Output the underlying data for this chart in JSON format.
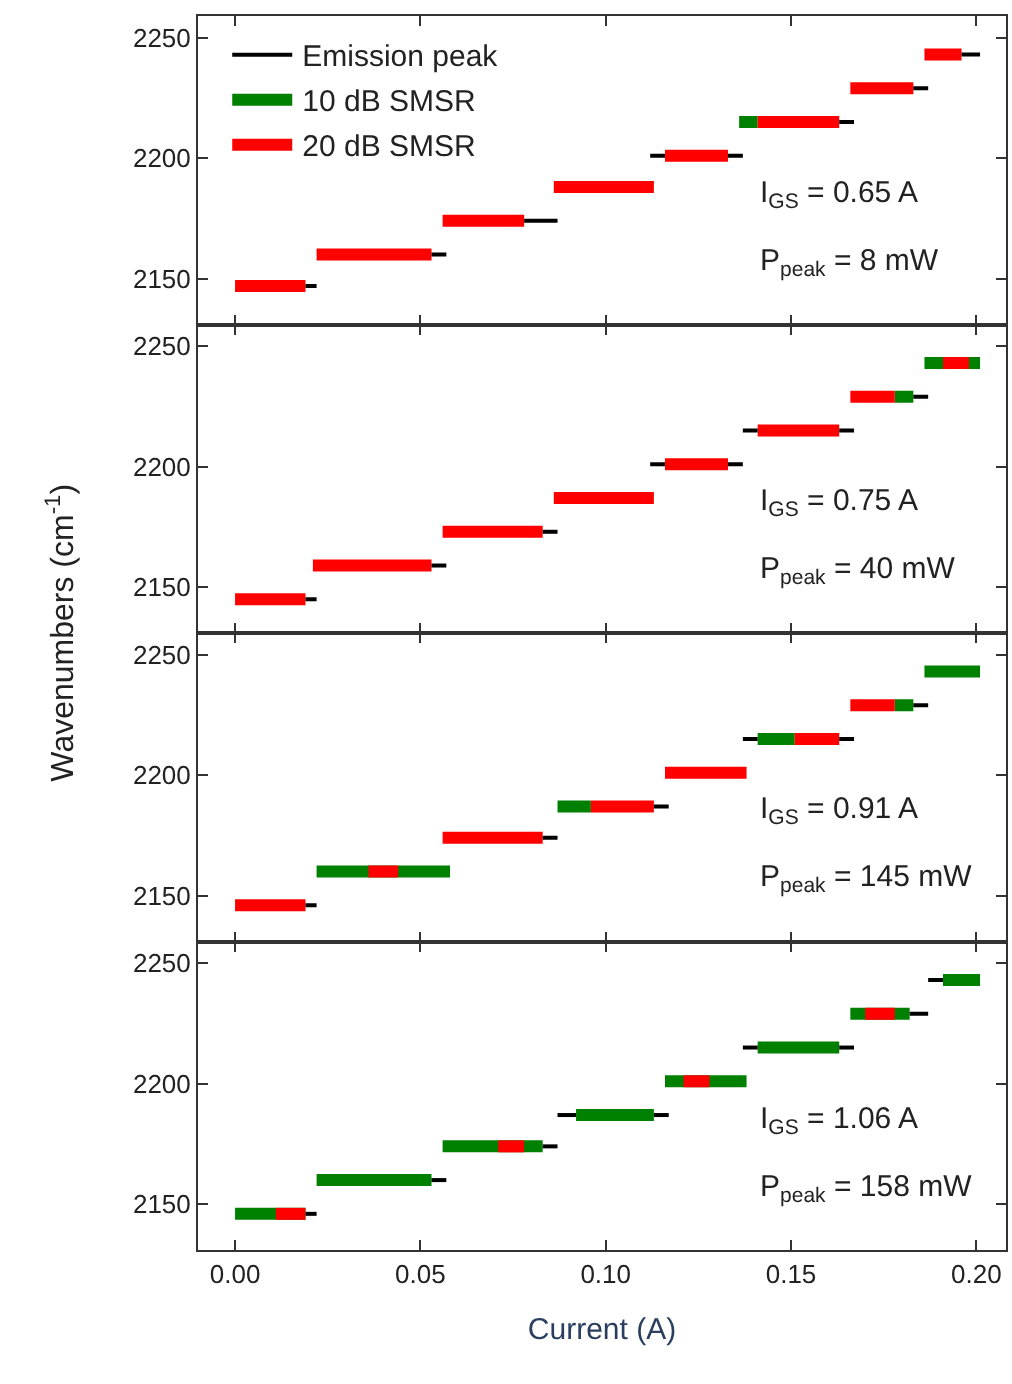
{
  "chart_data": [
    {
      "type": "line",
      "legend": "top left",
      "tick_labels": "y",
      "xlim": [
        -0.01,
        0.208
      ],
      "xticks": [
        {
          "value": 0,
          "label": null
        },
        {
          "value": 0.05,
          "label": null
        },
        {
          "value": 0.1,
          "label": null
        },
        {
          "value": 0.15,
          "label": null
        },
        {
          "value": 0.2,
          "label": null
        }
      ],
      "ylim": [
        2131,
        2259
      ],
      "yticks": [
        2150,
        2200,
        2250
      ],
      "annotations": [
        "I$_{GS}$ = 0.65 A",
        "P$_{peak}$ = 8 mW"
      ],
      "series": [
        {
          "name": "Emission peak",
          "color": "#000000",
          "x": [
            0.019,
            0.022,
            null,
            0.053,
            0.057,
            null,
            0.078,
            0.087,
            null,
            0.112,
            0.116,
            null,
            0.133,
            0.137,
            null,
            0.163,
            0.167,
            null,
            0.183,
            0.187,
            null,
            0.196,
            0.201
          ],
          "values": [
            2147,
            2147,
            null,
            2160,
            2160,
            null,
            2174,
            2174,
            null,
            2201,
            2201,
            null,
            2201,
            2201,
            null,
            2215,
            2215,
            null,
            2229,
            2229,
            null,
            2243,
            2243
          ]
        },
        {
          "name": "10 dB SMSR",
          "color": "#008000",
          "x": [
            0.136,
            0.141
          ],
          "values": [
            2215,
            2215
          ]
        },
        {
          "name": "20 dB SMSR",
          "color": "#ff0000",
          "x": [
            0,
            0.019,
            null,
            0.022,
            0.053,
            null,
            0.056,
            0.078,
            null,
            0.086,
            0.113,
            null,
            0.116,
            0.133,
            null,
            0.141,
            0.163,
            null,
            0.166,
            0.183,
            null,
            0.186,
            0.196
          ],
          "values": [
            2147,
            2147,
            null,
            2160,
            2160,
            null,
            2174,
            2174,
            null,
            2188,
            2188,
            null,
            2201,
            2201,
            null,
            2215,
            2215,
            null,
            2229,
            2229,
            null,
            2243,
            2243
          ]
        }
      ]
    },
    {
      "type": "line",
      "tick_labels": "y",
      "xlim": [
        -0.01,
        0.208
      ],
      "xticks": [
        {
          "value": 0,
          "label": null
        },
        {
          "value": 0.05,
          "label": null
        },
        {
          "value": 0.1,
          "label": null
        },
        {
          "value": 0.15,
          "label": null
        },
        {
          "value": 0.2,
          "label": null
        }
      ],
      "ylim": [
        2131,
        2259
      ],
      "yticks": [
        2150,
        2200,
        2250
      ],
      "ylabel": "Wavenumbers (cm$^{-1}$)",
      "annotations": [
        "I$_{GS}$ = 0.75 A",
        "P$_{peak}$ = 40 mW"
      ],
      "series": [
        {
          "color": "#000000",
          "x": [
            0.019,
            0.022,
            null,
            0.053,
            0.057,
            null,
            0.083,
            0.087,
            null,
            0.112,
            0.116,
            null,
            0.133,
            0.137,
            null,
            0.137,
            0.141,
            null,
            0.163,
            0.167,
            null,
            0.183,
            0.187
          ],
          "values": [
            2145,
            2145,
            null,
            2159,
            2159,
            null,
            2173,
            2173,
            null,
            2201,
            2201,
            null,
            2201,
            2201,
            null,
            2215,
            2215,
            null,
            2215,
            2215,
            null,
            2229,
            2229
          ]
        },
        {
          "color": "#008000",
          "x": [
            0.178,
            0.183,
            null,
            0.186,
            0.201
          ],
          "values": [
            2229,
            2229,
            null,
            2243,
            2243
          ]
        },
        {
          "color": "#ff0000",
          "x": [
            0,
            0.019,
            null,
            0.021,
            0.053,
            null,
            0.056,
            0.083,
            null,
            0.086,
            0.113,
            null,
            0.116,
            0.133,
            null,
            0.141,
            0.163,
            null,
            0.166,
            0.178,
            null,
            0.191,
            0.198
          ],
          "values": [
            2145,
            2145,
            null,
            2159,
            2159,
            null,
            2173,
            2173,
            null,
            2187,
            2187,
            null,
            2201,
            2201,
            null,
            2215,
            2215,
            null,
            2229,
            2229,
            null,
            2243,
            2243
          ]
        }
      ]
    },
    {
      "type": "line",
      "tick_labels": "y",
      "xlim": [
        -0.01,
        0.208
      ],
      "xticks": [
        {
          "value": 0,
          "label": null
        },
        {
          "value": 0.05,
          "label": null
        },
        {
          "value": 0.1,
          "label": null
        },
        {
          "value": 0.15,
          "label": null
        },
        {
          "value": 0.2,
          "label": null
        }
      ],
      "ylim": [
        2131,
        2259
      ],
      "yticks": [
        2150,
        2200,
        2250
      ],
      "annotations": [
        "I$_{GS}$ = 0.91 A",
        "P$_{peak}$ = 145 mW"
      ],
      "series": [
        {
          "color": "#000000",
          "x": [
            0.019,
            0.022,
            null,
            0.083,
            0.087,
            null,
            0.113,
            0.117,
            null,
            0.137,
            0.141,
            null,
            0.163,
            0.167,
            null,
            0.183,
            0.187
          ],
          "values": [
            2146,
            2146,
            null,
            2174,
            2174,
            null,
            2187,
            2187,
            null,
            2215,
            2215,
            null,
            2215,
            2215,
            null,
            2229,
            2229
          ]
        },
        {
          "color": "#008000",
          "x": [
            0.022,
            0.058,
            null,
            0.087,
            0.096,
            null,
            0.141,
            0.151,
            null,
            0.178,
            0.183,
            null,
            0.186,
            0.201
          ],
          "values": [
            2160,
            2160,
            null,
            2187,
            2187,
            null,
            2215,
            2215,
            null,
            2229,
            2229,
            null,
            2243,
            2243
          ]
        },
        {
          "color": "#ff0000",
          "x": [
            0,
            0.019,
            null,
            0.036,
            0.044,
            null,
            0.056,
            0.083,
            null,
            0.096,
            0.113,
            null,
            0.116,
            0.138,
            null,
            0.151,
            0.163,
            null,
            0.166,
            0.178
          ],
          "values": [
            2146,
            2146,
            null,
            2160,
            2160,
            null,
            2174,
            2174,
            null,
            2187,
            2187,
            null,
            2201,
            2201,
            null,
            2215,
            2215,
            null,
            2229,
            2229
          ]
        }
      ]
    },
    {
      "type": "line",
      "xlabel": "Current (A)",
      "xlim": [
        -0.01,
        0.208
      ],
      "xticks": [
        {
          "value": 0,
          "label": "0.00"
        },
        {
          "value": 0.05,
          "label": "0.05"
        },
        {
          "value": 0.1,
          "label": "0.10"
        },
        {
          "value": 0.15,
          "label": "0.15"
        },
        {
          "value": 0.2,
          "label": "0.20"
        }
      ],
      "ylim": [
        2131,
        2259
      ],
      "yticks": [
        2150,
        2200,
        2250
      ],
      "annotations": [
        "I$_{GS}$ = 1.06 A",
        "P$_{peak}$ = 158 mW"
      ],
      "series": [
        {
          "color": "#000000",
          "x": [
            0.019,
            0.022,
            null,
            0.053,
            0.057,
            null,
            0.083,
            0.087,
            null,
            0.087,
            0.092,
            null,
            0.113,
            0.117,
            null,
            0.137,
            0.141,
            null,
            0.163,
            0.167,
            null,
            0.182,
            0.187,
            null,
            0.187,
            0.191
          ],
          "values": [
            2146,
            2146,
            null,
            2160,
            2160,
            null,
            2174,
            2174,
            null,
            2187,
            2187,
            null,
            2187,
            2187,
            null,
            2215,
            2215,
            null,
            2215,
            2215,
            null,
            2229,
            2229,
            null,
            2243,
            2243
          ]
        },
        {
          "color": "#008000",
          "x": [
            0,
            0.019,
            null,
            0.022,
            0.053,
            null,
            0.056,
            0.083,
            null,
            0.092,
            0.113,
            null,
            0.116,
            0.138,
            null,
            0.141,
            0.163,
            null,
            0.166,
            0.182,
            null,
            0.191,
            0.201
          ],
          "values": [
            2146,
            2146,
            null,
            2160,
            2160,
            null,
            2174,
            2174,
            null,
            2187,
            2187,
            null,
            2201,
            2201,
            null,
            2215,
            2215,
            null,
            2229,
            2229,
            null,
            2243,
            2243
          ]
        },
        {
          "color": "#ff0000",
          "x": [
            0.011,
            0.019,
            null,
            0.071,
            0.078,
            null,
            0.121,
            0.128,
            null,
            0.17,
            0.178
          ],
          "values": [
            2146,
            2146,
            null,
            2174,
            2174,
            null,
            2201,
            2201,
            null,
            2229,
            2229
          ]
        }
      ]
    }
  ]
}
